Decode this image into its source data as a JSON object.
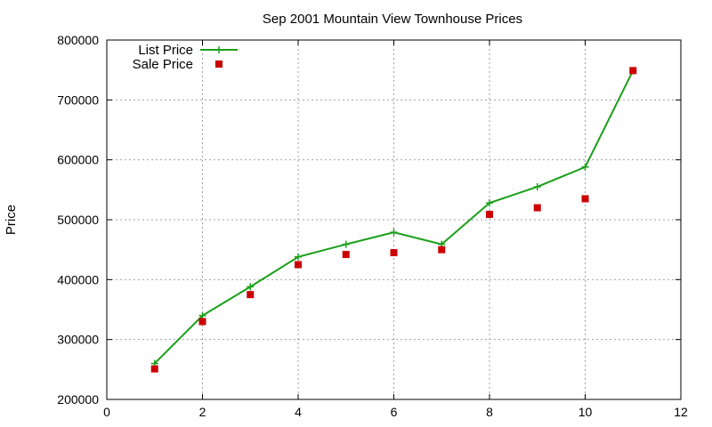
{
  "chart_data": {
    "type": "line",
    "title": "Sep 2001 Mountain View Townhouse Prices",
    "xlabel": "",
    "ylabel": "Price",
    "xlim": [
      0,
      12
    ],
    "ylim": [
      200000,
      800000
    ],
    "x_ticks": [
      "0",
      "2",
      "4",
      "6",
      "8",
      "10",
      "12"
    ],
    "y_ticks": [
      "200000",
      "300000",
      "400000",
      "500000",
      "600000",
      "700000",
      "800000"
    ],
    "grid": true,
    "legend_position": "top-left",
    "series": [
      {
        "name": "List Price",
        "style": "line-with-plus-markers",
        "color": "#1aa01a",
        "x": [
          1,
          2,
          3,
          4,
          5,
          6,
          7,
          8,
          9,
          10,
          11
        ],
        "values": [
          260000,
          340000,
          388000,
          438000,
          459000,
          479000,
          459000,
          528000,
          555000,
          588000,
          749000
        ]
      },
      {
        "name": "Sale Price",
        "style": "square-markers",
        "color": "#cc0000",
        "x": [
          1,
          2,
          3,
          4,
          5,
          6,
          7,
          8,
          9,
          10,
          11
        ],
        "values": [
          251000,
          330000,
          375000,
          425000,
          442000,
          445000,
          450000,
          509000,
          520000,
          535000,
          749000
        ]
      }
    ]
  }
}
